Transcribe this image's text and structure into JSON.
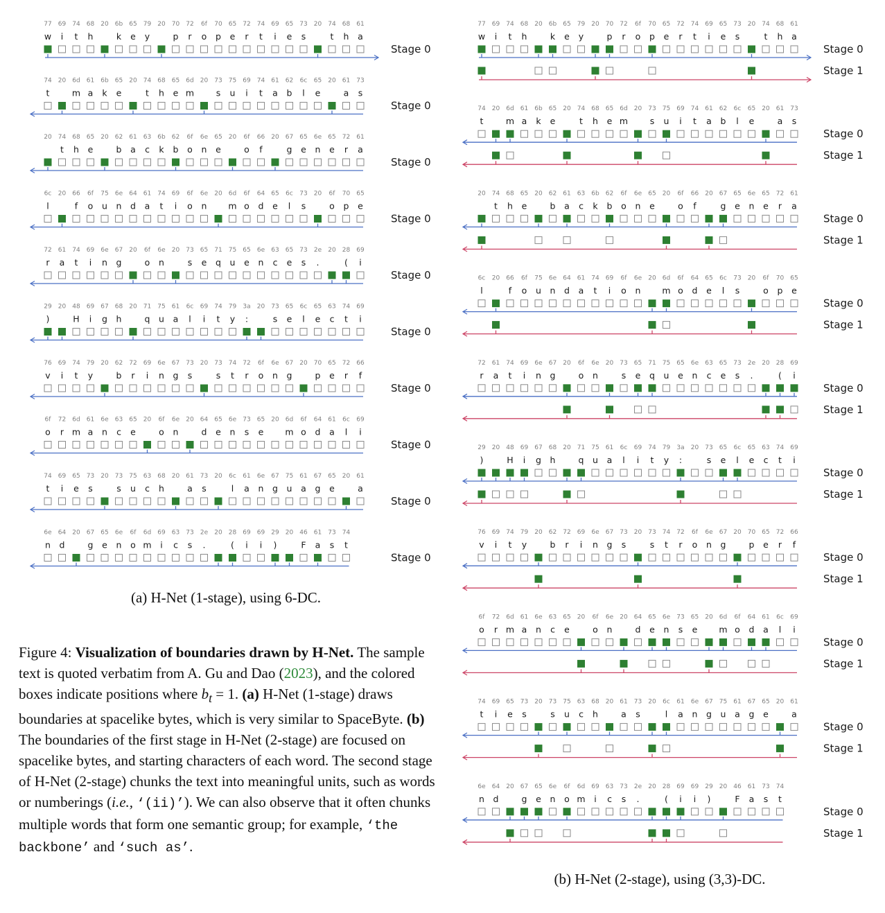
{
  "colors": {
    "stage0": "#4a6fc4",
    "stage1": "#cc4466",
    "box_fill": "#2e8032",
    "box_border": "#8a8a8a"
  },
  "panel_a": {
    "caption": "(a) H-Net (1-stage), using 6-DC.",
    "rows": [
      {
        "hex": "77 69 74 68 20 6b 65 79 20 70 72 6f 70 65 72 74 69 65 73 20 74 68 61",
        "text": "with key properties tha",
        "s0": [
          0,
          4,
          8,
          19
        ],
        "dir": "right",
        "stage0_label": "Stage 0"
      },
      {
        "hex": "74 20 6d 61 6b 65 20 74 68 65 6d 20 73 75 69 74 61 62 6c 65 20 61 73",
        "text": "t make them suitable as",
        "s0": [
          1,
          6,
          11,
          20
        ],
        "dir": "left",
        "stage0_label": "Stage 0"
      },
      {
        "hex": "20 74 68 65 20 62 61 63 6b 62 6f 6e 65 20 6f 66 20 67 65 6e 65 72 61",
        "text": " the backbone of genera",
        "s0": [
          0,
          4,
          9,
          13,
          16
        ],
        "dir": "left",
        "stage0_label": "Stage 0"
      },
      {
        "hex": "6c 20 66 6f 75 6e 64 61 74 69 6f 6e 20 6d 6f 64 65 6c 73 20 6f 70 65",
        "text": "l foundation models ope",
        "s0": [
          1,
          12,
          19
        ],
        "dir": "left",
        "stage0_label": "Stage 0"
      },
      {
        "hex": "72 61 74 69 6e 67 20 6f 6e 20 73 65 71 75 65 6e 63 65 73 2e 20 28 69",
        "text": "rating on sequences. (i",
        "s0": [
          6,
          9,
          20,
          21
        ],
        "dir": "left",
        "stage0_label": "Stage 0"
      },
      {
        "hex": "29 20 48 69 67 68 20 71 75 61 6c 69 74 79 3a 20 73 65 6c 65 63 74 69",
        "text": ") High quality: selecti",
        "s0": [
          0,
          1,
          6,
          14,
          15
        ],
        "dir": "left",
        "stage0_label": "Stage 0"
      },
      {
        "hex": "76 69 74 79 20 62 72 69 6e 67 73 20 73 74 72 6f 6e 67 20 70 65 72 66",
        "text": "vity brings strong perf",
        "s0": [
          4,
          11,
          18
        ],
        "dir": "left",
        "stage0_label": "Stage 0"
      },
      {
        "hex": "6f 72 6d 61 6e 63 65 20 6f 6e 20 64 65 6e 73 65 20 6d 6f 64 61 6c 69",
        "text": "ormance on dense modali",
        "s0": [
          7,
          10
        ],
        "dir": "left",
        "stage0_label": "Stage 0"
      },
      {
        "hex": "74 69 65 73 20 73 75 63 68 20 61 73 20 6c 61 6e 67 75 61 67 65 20 61",
        "text": "ties such as language a",
        "s0": [
          4,
          9,
          12,
          21
        ],
        "dir": "left",
        "stage0_label": "Stage 0"
      },
      {
        "hex": "6e 64 20 67 65 6e 6f 6d 69 63 73 2e 20 28 69 69 29 20 46 61 73 74",
        "text": "nd genomics. (ii) Fast",
        "s0": [
          2,
          12,
          13,
          16,
          17,
          19
        ],
        "dir": "left",
        "stage0_label": "Stage 0"
      }
    ]
  },
  "panel_b": {
    "caption": "(b) H-Net (2-stage), using (3,3)-DC.",
    "rows": [
      {
        "hex": "77 69 74 68 20 6b 65 79 20 70 72 6f 70 65 72 74 69 65 73 20 74 68 61",
        "text": "with key properties tha",
        "s0": [
          0,
          4,
          5,
          8,
          9,
          12,
          19
        ],
        "s1": [
          0,
          8,
          19
        ],
        "dir": "right",
        "stage0_label": "Stage 0",
        "stage1_label": "Stage 1"
      },
      {
        "hex": "74 20 6d 61 6b 65 20 74 68 65 6d 20 73 75 69 74 61 62 6c 65 20 61 73",
        "text": "t make them suitable as",
        "s0": [
          1,
          2,
          6,
          11,
          13,
          20
        ],
        "s1": [
          1,
          6,
          11,
          20
        ],
        "dir": "left",
        "stage0_label": "Stage 0",
        "stage1_label": "Stage 1"
      },
      {
        "hex": "20 74 68 65 20 62 61 63 6b 62 6f 6e 65 20 6f 66 20 67 65 6e 65 72 61",
        "text": " the backbone of genera",
        "s0": [
          0,
          4,
          6,
          9,
          13,
          16,
          17
        ],
        "s1": [
          0,
          13,
          16
        ],
        "dir": "left",
        "stage0_label": "Stage 0",
        "stage1_label": "Stage 1"
      },
      {
        "hex": "6c 20 66 6f 75 6e 64 61 74 69 6f 6e 20 6d 6f 64 65 6c 73 20 6f 70 65",
        "text": "l foundation models ope",
        "s0": [
          1,
          12,
          13,
          19
        ],
        "s1": [
          1,
          12,
          19
        ],
        "dir": "left",
        "stage0_label": "Stage 0",
        "stage1_label": "Stage 1"
      },
      {
        "hex": "72 61 74 69 6e 67 20 6f 6e 20 73 65 71 75 65 6e 63 65 73 2e 20 28 69",
        "text": "rating on sequences. (i",
        "s0": [
          6,
          9,
          11,
          12,
          20,
          21,
          22
        ],
        "s1": [
          6,
          9,
          20,
          21
        ],
        "dir": "left",
        "stage0_label": "Stage 0",
        "stage1_label": "Stage 1"
      },
      {
        "hex": "29 20 48 69 67 68 20 71 75 61 6c 69 74 79 3a 20 73 65 6c 65 63 74 69",
        "text": ") High quality: selecti",
        "s0": [
          0,
          1,
          2,
          3,
          6,
          7,
          14,
          17,
          18
        ],
        "s1": [
          0,
          6,
          14
        ],
        "dir": "left",
        "stage0_label": "Stage 0",
        "stage1_label": "Stage 1"
      },
      {
        "hex": "76 69 74 79 20 62 72 69 6e 67 73 20 73 74 72 6f 6e 67 20 70 65 72 66",
        "text": "vity brings strong perf",
        "s0": [
          4,
          11,
          18
        ],
        "s1": [
          4,
          11,
          18
        ],
        "dir": "left",
        "stage0_label": "Stage 0",
        "stage1_label": "Stage 1"
      },
      {
        "hex": "6f 72 6d 61 6e 63 65 20 6f 6e 20 64 65 6e 73 65 20 6d 6f 64 61 6c 69",
        "text": "ormance on dense modali",
        "s0": [
          7,
          10,
          12,
          13,
          16,
          17,
          19,
          20
        ],
        "s1": [
          7,
          10,
          16
        ],
        "dir": "left",
        "stage0_label": "Stage 0",
        "stage1_label": "Stage 1"
      },
      {
        "hex": "74 69 65 73 20 73 75 63 68 20 61 73 20 6c 61 6e 67 75 61 67 65 20 61",
        "text": "ties such as language a",
        "s0": [
          4,
          6,
          9,
          12,
          13,
          21
        ],
        "s1": [
          4,
          12,
          21
        ],
        "dir": "left",
        "stage0_label": "Stage 0",
        "stage1_label": "Stage 1"
      },
      {
        "hex": "6e 64 20 67 65 6e 6f 6d 69 63 73 2e 20 28 69 69 29 20 46 61 73 74",
        "text": "nd genomics. (ii) Fast",
        "s0": [
          2,
          3,
          4,
          6,
          12,
          13,
          14,
          17
        ],
        "s1": [
          2,
          12,
          13
        ],
        "dir": "left",
        "stage0_label": "Stage 0",
        "stage1_label": "Stage 1"
      }
    ]
  },
  "figure_caption": {
    "label": "Figure 4:",
    "title": "Visualization of boundaries drawn by H-Net.",
    "t1": "The sample text is quoted verbatim from A. Gu and Dao (",
    "cite_year": "2023",
    "t2": "), and the colored boxes indicate positions where ",
    "math_b": "b",
    "math_sub": "t",
    "t3": " = 1. ",
    "a_label": "(a)",
    "t4": " H-Net (1-stage) draws boundaries at spacelike bytes, which is very similar to SpaceByte. ",
    "b_label": "(b)",
    "t5": " The boundaries of the first stage in H-Net (2-stage) are focused on spacelike bytes, and starting characters of each word. The second stage of H-Net (2-stage) chunks the text into meaningful units, such as words or numberings (",
    "ie": "i.e.,",
    "code1": "‘(ii)’",
    "t6": "). We can also observe that it often chunks multiple words that form one semantic group; for example, ",
    "code2": "‘the backbone’",
    "t7": " and ",
    "code3": "‘such as’",
    "t8": "."
  }
}
